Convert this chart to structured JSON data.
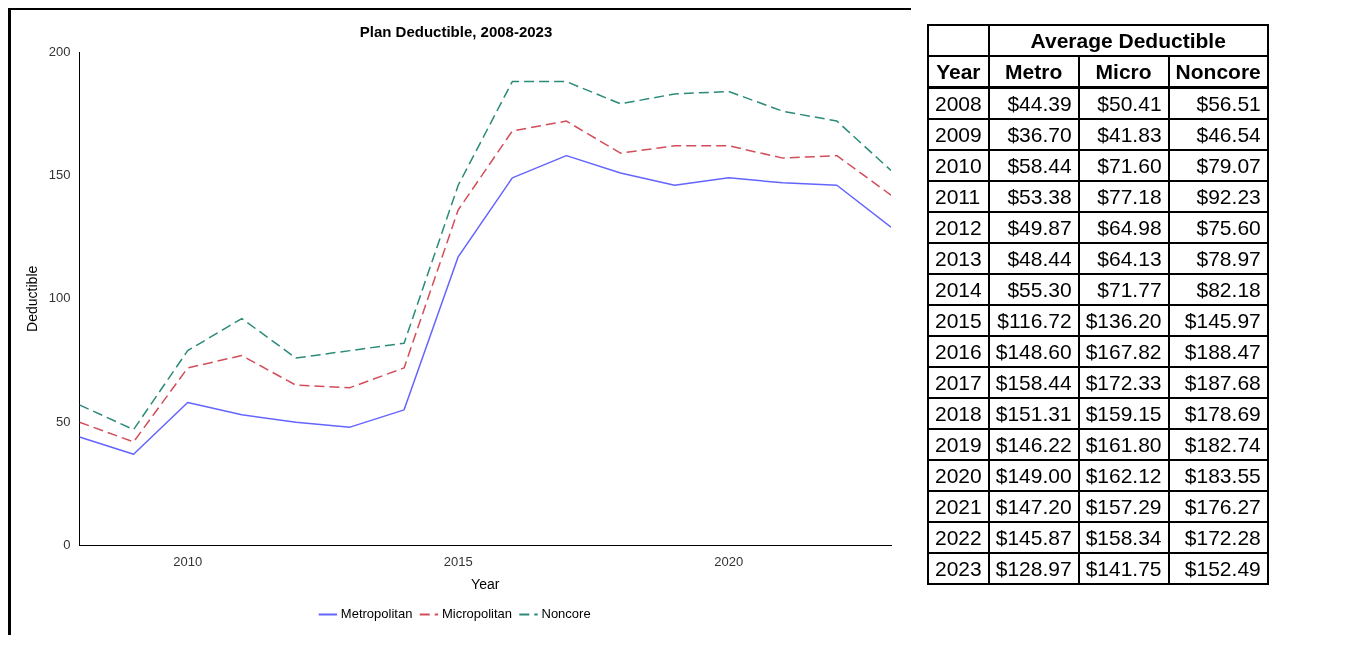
{
  "chart_data": [
    {
      "type": "line",
      "title": "Plan Deductible, 2008-2023",
      "xlabel": "Year",
      "ylabel": "Deductible",
      "x": [
        2008,
        2009,
        2010,
        2011,
        2012,
        2013,
        2014,
        2015,
        2016,
        2017,
        2018,
        2019,
        2020,
        2021,
        2022,
        2023
      ],
      "xlim": [
        2008,
        2023
      ],
      "xticks": [
        2010,
        2015,
        2020
      ],
      "ylim": [
        0,
        200
      ],
      "yticks": [
        0,
        50,
        100,
        150,
        200
      ],
      "legend": "bottom",
      "marker": "none",
      "grid": false,
      "series": [
        {
          "name": "Metropolitan",
          "color": "#6464ff",
          "line_style": "solid",
          "values": [
            44,
            37,
            58,
            53,
            50,
            48,
            55,
            117,
            149,
            158,
            151,
            146,
            149,
            147,
            146,
            129
          ]
        },
        {
          "name": "Micropolitan",
          "color": "#d24e5a",
          "line_style": "dashed",
          "values": [
            50,
            42,
            72,
            77,
            65,
            64,
            72,
            136,
            168,
            172,
            159,
            162,
            162,
            157,
            158,
            142
          ]
        },
        {
          "name": "Noncore",
          "color": "#2b8a78",
          "line_style": "dashed",
          "values": [
            57,
            47,
            79,
            92,
            76,
            79,
            82,
            146,
            188,
            188,
            179,
            183,
            184,
            176,
            172,
            152
          ]
        }
      ]
    },
    {
      "type": "heatmap",
      "title": "Average Deductible",
      "ylabel": "Year",
      "categories": [
        "Metro",
        "Micro",
        "Noncore"
      ],
      "y_categories": [
        "2008",
        "2009",
        "2010",
        "2011",
        "2012",
        "2013",
        "2014",
        "2015",
        "2016",
        "2017",
        "2018",
        "2019",
        "2020",
        "2021",
        "2022",
        "2023"
      ],
      "cells": [
        [
          44.39,
          50.41,
          56.51
        ],
        [
          36.7,
          41.83,
          46.54
        ],
        [
          58.44,
          71.6,
          79.07
        ],
        [
          53.38,
          77.18,
          92.23
        ],
        [
          49.87,
          64.98,
          75.6
        ],
        [
          48.44,
          64.13,
          78.97
        ],
        [
          55.3,
          71.77,
          82.18
        ],
        [
          116.72,
          136.2,
          145.97
        ],
        [
          148.6,
          167.82,
          188.47
        ],
        [
          158.44,
          172.33,
          187.68
        ],
        [
          151.31,
          159.15,
          178.69
        ],
        [
          146.22,
          161.8,
          182.74
        ],
        [
          149.0,
          162.12,
          183.55
        ],
        [
          147.2,
          157.29,
          176.27
        ],
        [
          145.87,
          158.34,
          172.28
        ],
        [
          128.97,
          141.75,
          152.49
        ]
      ],
      "cell_labels": [
        [
          "$44.39",
          "$50.41",
          "$56.51"
        ],
        [
          "$36.70",
          "$41.83",
          "$46.54"
        ],
        [
          "$58.44",
          "$71.60",
          "$79.07"
        ],
        [
          "$53.38",
          "$77.18",
          "$92.23"
        ],
        [
          "$49.87",
          "$64.98",
          "$75.60"
        ],
        [
          "$48.44",
          "$64.13",
          "$78.97"
        ],
        [
          "$55.30",
          "$71.77",
          "$82.18"
        ],
        [
          "$116.72",
          "$136.20",
          "$145.97"
        ],
        [
          "$148.60",
          "$167.82",
          "$188.47"
        ],
        [
          "$158.44",
          "$172.33",
          "$187.68"
        ],
        [
          "$151.31",
          "$159.15",
          "$178.69"
        ],
        [
          "$146.22",
          "$161.80",
          "$182.74"
        ],
        [
          "$149.00",
          "$162.12",
          "$183.55"
        ],
        [
          "$147.20",
          "$157.29",
          "$176.27"
        ],
        [
          "$145.87",
          "$158.34",
          "$172.28"
        ],
        [
          "$128.97",
          "$141.75",
          "$152.49"
        ]
      ]
    }
  ]
}
